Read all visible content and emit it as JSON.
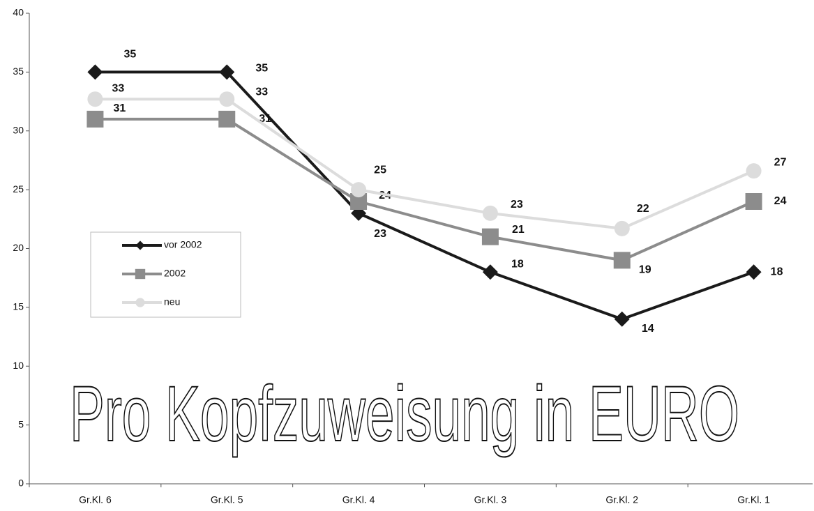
{
  "chart_data": {
    "type": "line",
    "title": "Pro Kopfzuweisung in EURO",
    "categories": [
      "Gr.Kl. 6",
      "Gr.Kl. 5",
      "Gr.Kl. 4",
      "Gr.Kl. 3",
      "Gr.Kl. 2",
      "Gr.Kl. 1"
    ],
    "series": [
      {
        "name": "vor 2002",
        "color": "#1a1a1a",
        "marker": "diamond",
        "values": [
          35,
          35,
          23,
          18,
          14,
          18
        ]
      },
      {
        "name": "2002",
        "color": "#8c8c8c",
        "marker": "square",
        "values": [
          31,
          31,
          24,
          21,
          19,
          24
        ]
      },
      {
        "name": "neu",
        "color": "#dcdcdc",
        "marker": "circle",
        "values": [
          32.7,
          32.7,
          25,
          23,
          21.7,
          26.6
        ],
        "value_labels": [
          "33",
          "33",
          "25",
          "23",
          "22",
          "27"
        ]
      }
    ],
    "ylim": [
      0,
      40
    ],
    "yticks": [
      0,
      5,
      10,
      15,
      20,
      25,
      30,
      35,
      40
    ],
    "grid": false
  }
}
